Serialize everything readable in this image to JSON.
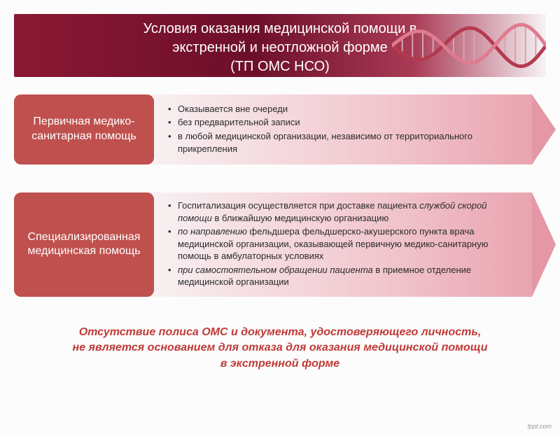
{
  "header": {
    "title_line1": "Условия оказания медицинской помощи в",
    "title_line2": "экстренной и неотложной форме",
    "title_line3": "(ТП ОМС НСО)",
    "font_size": 20,
    "color": "#ffffff",
    "gradient_from": "#8a1834",
    "gradient_mid": "#6d0f2a",
    "gradient_to": "#f7f3f5"
  },
  "blocks": [
    {
      "label": "Первичная медико-санитарная помощь",
      "label_color": "#bf504d",
      "arrow_gradient_from": "#f8f2f3",
      "arrow_gradient_to": "#e9a4b0",
      "items_html": [
        "Оказывается вне очереди",
        "без предварительной записи",
        " в любой медицинской организации, независимо от территориального прикрепления"
      ]
    },
    {
      "label": "Специализированная медицинская помощь",
      "label_color": "#bf504d",
      "arrow_gradient_from": "#f8f2f3",
      "arrow_gradient_to": "#e9a4b0",
      "items_html": [
        "Госпитализация осуществляется при доставке пациента <i>службой скорой помощи</i> в ближайшую медицинскую организацию",
        "<i>по направлению</i> фельдшера фельдшерско-акушерского пункта врача медицинской организации, оказывающей первичную медико-санитарную помощь в амбулаторных условиях",
        "<i>при самостоятельном обращении пациента</i> в приемное отделение медицинской организации"
      ]
    }
  ],
  "note": {
    "line1": "Отсутствие полиса ОМС и документа, удостоверяющего личность,",
    "line2": "не является основанием для отказа для оказания медицинской помощи",
    "line3": "в экстренной форме",
    "color": "#bf3a37",
    "font_size": 16,
    "font_style": "italic",
    "font_weight": "bold"
  },
  "watermark": "fppt.com",
  "dna": {
    "strand_color_a": "#b43a4f",
    "strand_color_b": "#e07b8f",
    "rung_color": "#d4a6af"
  }
}
